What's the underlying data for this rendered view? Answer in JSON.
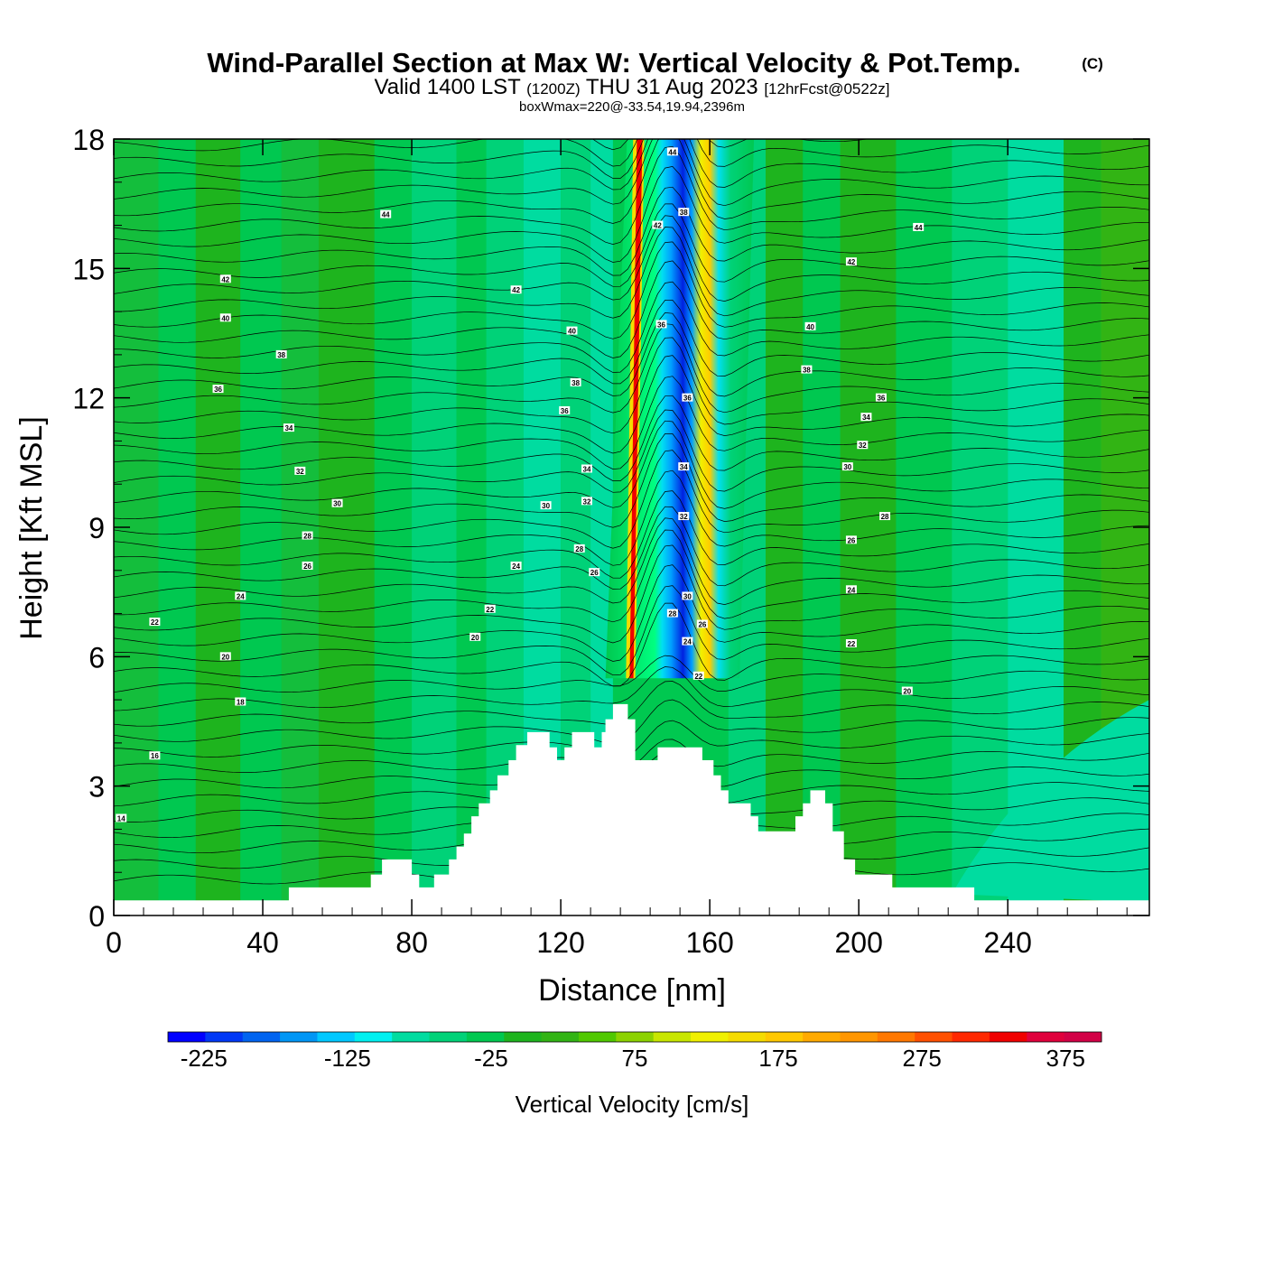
{
  "header": {
    "title": "Wind-Parallel Section at Max W: Vertical Velocity & Pot.Temp.",
    "copyright": "(C)",
    "valid_prefix": "Valid 1400 LST",
    "valid_utc": "(1200Z)",
    "valid_date": "THU 31 Aug 2023",
    "forecast": "[12hrFcst@0522z]",
    "box_info": "boxWmax=220@-33.54,19.94,2396m"
  },
  "chart_data": {
    "type": "heatmap",
    "title": "Wind-Parallel Section at Max W: Vertical Velocity & Pot.Temp.",
    "xlabel": "Distance [nm]",
    "ylabel": "Height [Kft MSL]",
    "xlim": [
      0,
      278
    ],
    "ylim": [
      0,
      18
    ],
    "x_ticks": [
      0,
      40,
      80,
      120,
      160,
      200,
      240
    ],
    "y_ticks": [
      0,
      3,
      6,
      9,
      12,
      15,
      18
    ],
    "colorbar": {
      "label": "Vertical Velocity [cm/s]",
      "min": -250,
      "max": 400,
      "step": 25,
      "tick_labels": [
        "-225",
        "-125",
        "-25",
        "75",
        "175",
        "275",
        "375"
      ],
      "tick_values": [
        -225,
        -125,
        -25,
        75,
        175,
        275,
        375
      ],
      "colors": [
        "#0000ff",
        "#0038f5",
        "#0064f0",
        "#0096f5",
        "#00c8ff",
        "#00f0f0",
        "#00dca0",
        "#00d278",
        "#00c850",
        "#1eb41e",
        "#32b414",
        "#50c800",
        "#8cd200",
        "#c8e600",
        "#f0f000",
        "#f5dc00",
        "#ffc800",
        "#ffaa00",
        "#ff9600",
        "#ff7800",
        "#ff5000",
        "#ff2800",
        "#f00000",
        "#e0003c",
        "#d20046"
      ]
    },
    "terrain": [
      [
        0,
        0.35
      ],
      [
        47,
        0.35
      ],
      [
        47,
        0.65
      ],
      [
        69,
        0.65
      ],
      [
        69,
        0.95
      ],
      [
        72,
        0.95
      ],
      [
        72,
        1.3
      ],
      [
        80,
        1.3
      ],
      [
        80,
        0.95
      ],
      [
        82,
        0.95
      ],
      [
        82,
        0.65
      ],
      [
        86,
        0.65
      ],
      [
        86,
        0.95
      ],
      [
        90,
        0.95
      ],
      [
        90,
        1.3
      ],
      [
        92,
        1.3
      ],
      [
        92,
        1.6
      ],
      [
        94,
        1.6
      ],
      [
        94,
        1.9
      ],
      [
        96,
        1.9
      ],
      [
        96,
        2.3
      ],
      [
        98,
        2.3
      ],
      [
        98,
        2.6
      ],
      [
        101,
        2.6
      ],
      [
        101,
        2.9
      ],
      [
        103,
        2.9
      ],
      [
        103,
        3.25
      ],
      [
        106,
        3.25
      ],
      [
        106,
        3.6
      ],
      [
        108,
        3.6
      ],
      [
        108,
        3.95
      ],
      [
        111,
        3.95
      ],
      [
        111,
        4.25
      ],
      [
        115,
        4.25
      ],
      [
        115,
        4.25
      ],
      [
        117,
        4.25
      ],
      [
        117,
        3.9
      ],
      [
        119,
        3.9
      ],
      [
        119,
        3.6
      ],
      [
        121,
        3.6
      ],
      [
        121,
        3.9
      ],
      [
        123,
        3.9
      ],
      [
        123,
        4.25
      ],
      [
        129,
        4.25
      ],
      [
        129,
        3.9
      ],
      [
        131,
        3.9
      ],
      [
        131,
        4.25
      ],
      [
        132,
        4.25
      ],
      [
        132,
        4.55
      ],
      [
        134,
        4.55
      ],
      [
        134,
        4.9
      ],
      [
        138,
        4.9
      ],
      [
        138,
        4.55
      ],
      [
        140,
        4.55
      ],
      [
        140,
        3.6
      ],
      [
        146,
        3.6
      ],
      [
        146,
        3.9
      ],
      [
        158,
        3.9
      ],
      [
        158,
        3.6
      ],
      [
        161,
        3.6
      ],
      [
        161,
        3.25
      ],
      [
        163,
        3.25
      ],
      [
        163,
        2.9
      ],
      [
        165,
        2.9
      ],
      [
        165,
        2.6
      ],
      [
        171,
        2.6
      ],
      [
        171,
        2.3
      ],
      [
        173,
        2.3
      ],
      [
        173,
        1.95
      ],
      [
        183,
        1.95
      ],
      [
        183,
        2.3
      ],
      [
        185,
        2.3
      ],
      [
        185,
        2.6
      ],
      [
        187,
        2.6
      ],
      [
        187,
        2.9
      ],
      [
        191,
        2.9
      ],
      [
        191,
        2.6
      ],
      [
        193,
        2.6
      ],
      [
        193,
        1.95
      ],
      [
        196,
        1.95
      ],
      [
        196,
        1.3
      ],
      [
        199,
        1.3
      ],
      [
        199,
        0.95
      ],
      [
        209,
        0.95
      ],
      [
        209,
        0.65
      ],
      [
        231,
        0.65
      ],
      [
        231,
        0.35
      ],
      [
        278,
        0.35
      ],
      [
        278,
        0
      ]
    ],
    "theta_contour_labels": [
      {
        "x": 73,
        "y": 16.25,
        "v": "44"
      },
      {
        "x": 30,
        "y": 14.75,
        "v": "42"
      },
      {
        "x": 30,
        "y": 13.85,
        "v": "40"
      },
      {
        "x": 45,
        "y": 13.0,
        "v": "38"
      },
      {
        "x": 28,
        "y": 12.2,
        "v": "36"
      },
      {
        "x": 47,
        "y": 11.3,
        "v": "34"
      },
      {
        "x": 50,
        "y": 10.3,
        "v": "32"
      },
      {
        "x": 60,
        "y": 9.55,
        "v": "30"
      },
      {
        "x": 52,
        "y": 8.8,
        "v": "28"
      },
      {
        "x": 52,
        "y": 8.1,
        "v": "26"
      },
      {
        "x": 34,
        "y": 7.4,
        "v": "24"
      },
      {
        "x": 11,
        "y": 6.8,
        "v": "22"
      },
      {
        "x": 30,
        "y": 6.0,
        "v": "20"
      },
      {
        "x": 34,
        "y": 4.95,
        "v": "18"
      },
      {
        "x": 11,
        "y": 3.7,
        "v": "16"
      },
      {
        "x": 2,
        "y": 2.25,
        "v": "14"
      },
      {
        "x": 108,
        "y": 14.5,
        "v": "42"
      },
      {
        "x": 123,
        "y": 13.55,
        "v": "40"
      },
      {
        "x": 124,
        "y": 12.35,
        "v": "38"
      },
      {
        "x": 121,
        "y": 11.7,
        "v": "36"
      },
      {
        "x": 127,
        "y": 10.35,
        "v": "34"
      },
      {
        "x": 127,
        "y": 9.6,
        "v": "32"
      },
      {
        "x": 116,
        "y": 9.5,
        "v": "30"
      },
      {
        "x": 125,
        "y": 8.5,
        "v": "28"
      },
      {
        "x": 108,
        "y": 8.1,
        "v": "24"
      },
      {
        "x": 129,
        "y": 7.95,
        "v": "26"
      },
      {
        "x": 101,
        "y": 7.1,
        "v": "22"
      },
      {
        "x": 97,
        "y": 6.45,
        "v": "20"
      },
      {
        "x": 150,
        "y": 17.7,
        "v": "44"
      },
      {
        "x": 146,
        "y": 16.0,
        "v": "42"
      },
      {
        "x": 153,
        "y": 16.3,
        "v": "38"
      },
      {
        "x": 147,
        "y": 13.7,
        "v": "36"
      },
      {
        "x": 154,
        "y": 12.0,
        "v": "36"
      },
      {
        "x": 153,
        "y": 10.4,
        "v": "34"
      },
      {
        "x": 153,
        "y": 9.25,
        "v": "32"
      },
      {
        "x": 154,
        "y": 7.4,
        "v": "30"
      },
      {
        "x": 150,
        "y": 7.0,
        "v": "28"
      },
      {
        "x": 158,
        "y": 6.75,
        "v": "26"
      },
      {
        "x": 154,
        "y": 6.35,
        "v": "24"
      },
      {
        "x": 157,
        "y": 5.55,
        "v": "22"
      },
      {
        "x": 216,
        "y": 15.95,
        "v": "44"
      },
      {
        "x": 198,
        "y": 15.15,
        "v": "42"
      },
      {
        "x": 187,
        "y": 13.65,
        "v": "40"
      },
      {
        "x": 186,
        "y": 12.65,
        "v": "38"
      },
      {
        "x": 206,
        "y": 12.0,
        "v": "36"
      },
      {
        "x": 202,
        "y": 11.55,
        "v": "34"
      },
      {
        "x": 201,
        "y": 10.9,
        "v": "32"
      },
      {
        "x": 197,
        "y": 10.4,
        "v": "30"
      },
      {
        "x": 207,
        "y": 9.25,
        "v": "28"
      },
      {
        "x": 198,
        "y": 8.7,
        "v": "26"
      },
      {
        "x": 198,
        "y": 7.55,
        "v": "24"
      },
      {
        "x": 198,
        "y": 6.3,
        "v": "22"
      },
      {
        "x": 213,
        "y": 5.2,
        "v": "20"
      }
    ]
  }
}
